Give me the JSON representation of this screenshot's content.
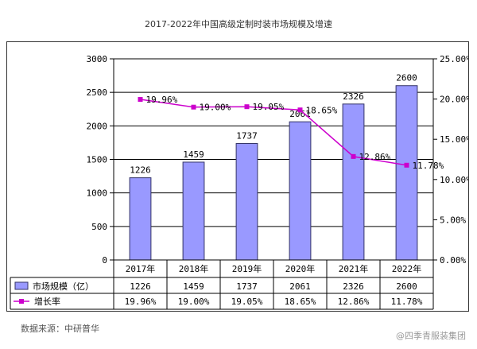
{
  "page": {
    "title": "2017-2022年中国高级定制时装市场规模及增速",
    "source": "数据来源：中研普华",
    "watermark": "@四季青服装集团"
  },
  "colors": {
    "bar_fill": "#9999ff",
    "bar_stroke": "#333366",
    "line": "#cc00cc",
    "axis": "#000000",
    "grid": "#000000",
    "plot_bg": "#ffffff"
  },
  "chart_data": {
    "type": "bar",
    "title": "2017-2022年中国高级定制时装市场规模及增速",
    "categories": [
      "2017年",
      "2018年",
      "2019年",
      "2020年",
      "2021年",
      "2022年"
    ],
    "series": [
      {
        "name": "市场规模（亿）",
        "type": "bar",
        "axis": "left",
        "values": [
          1226,
          1459,
          1737,
          2061,
          2326,
          2600
        ],
        "data_labels": [
          "1226",
          "1459",
          "1737",
          "2061",
          "2326",
          "2600"
        ]
      },
      {
        "name": "增长率",
        "type": "line",
        "axis": "right",
        "values": [
          19.96,
          19.0,
          19.05,
          18.65,
          12.86,
          11.78
        ],
        "data_labels": [
          "19.96%",
          "19.00%",
          "19.05%",
          "18.65%",
          "12.86%",
          "11.78%"
        ]
      }
    ],
    "y_left": {
      "lim": [
        0,
        3000
      ],
      "ticks": [
        0,
        500,
        1000,
        1500,
        2000,
        2500,
        3000
      ],
      "tick_labels": [
        "0",
        "500",
        "1000",
        "1500",
        "2000",
        "2500",
        "3000"
      ]
    },
    "y_right": {
      "lim": [
        0,
        25
      ],
      "ticks": [
        0,
        5,
        10,
        15,
        20,
        25
      ],
      "tick_labels": [
        "0.00%",
        "5.00%",
        "10.00%",
        "15.00%",
        "20.00%",
        "25.00%"
      ]
    },
    "grid": true,
    "legend": "data-table-below"
  }
}
